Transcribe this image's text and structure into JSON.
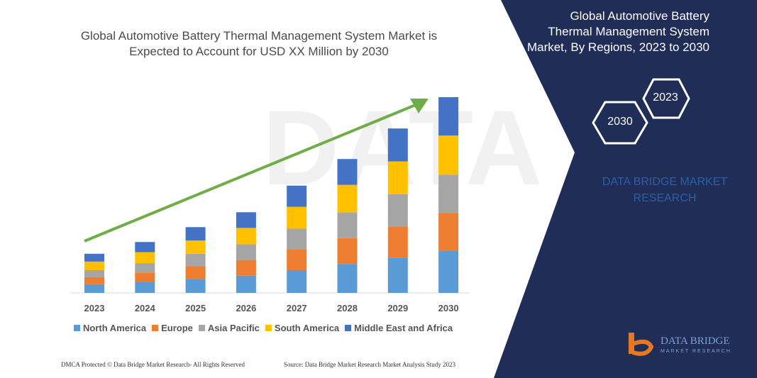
{
  "chart_data": {
    "type": "bar",
    "stacked": true,
    "title": "Global Automotive Battery Thermal Management System Market is Expected to Account for USD XX Million by 2030",
    "categories": [
      "2023",
      "2024",
      "2025",
      "2026",
      "2027",
      "2028",
      "2029",
      "2030"
    ],
    "series": [
      {
        "name": "North America",
        "color": "#5b9bd5",
        "values": [
          11,
          14,
          18,
          22,
          29,
          37,
          45,
          54
        ]
      },
      {
        "name": "Europe",
        "color": "#ed7d31",
        "values": [
          9,
          12,
          16,
          20,
          27,
          33,
          40,
          48
        ]
      },
      {
        "name": "Asia Pacific",
        "color": "#a5a5a5",
        "values": [
          9,
          12,
          16,
          20,
          26,
          33,
          41,
          49
        ]
      },
      {
        "name": "South America",
        "color": "#ffc000",
        "values": [
          11,
          14,
          17,
          21,
          28,
          35,
          42,
          50
        ]
      },
      {
        "name": "Middle East and Africa",
        "color": "#4472c4",
        "values": [
          10,
          13,
          17,
          20,
          27,
          33,
          42,
          49
        ]
      }
    ],
    "ylim": [
      0,
      260
    ],
    "trend_arrow": true,
    "legend_position": "bottom",
    "grid": false
  },
  "legend": [
    {
      "label": "North America",
      "color": "#5b9bd5"
    },
    {
      "label": "Europe",
      "color": "#ed7d31"
    },
    {
      "label": "Asia Pacific",
      "color": "#a5a5a5"
    },
    {
      "label": "South America",
      "color": "#ffc000"
    },
    {
      "label": "Middle East and Africa",
      "color": "#4472c4"
    }
  ],
  "right_panel": {
    "title": "Global Automotive Battery Thermal Management System Market, By Regions, 2023 to 2030",
    "hex_start": "2023",
    "hex_end": "2030",
    "brand_text": "DATA BRIDGE MARKET RESEARCH",
    "background": "#1f2d57"
  },
  "logo": {
    "name": "DATA BRIDGE",
    "sub": "MARKET RESEARCH"
  },
  "footer": {
    "left": "DMCA Protected © Data Bridge Market Research- All Rights Reserved",
    "right": "Source: Data Bridge Market Research Market Analysis Study 2023"
  },
  "colors": {
    "arrow": "#70ad47",
    "panel": "#1f2d57",
    "axis": "#d9d9d9"
  }
}
